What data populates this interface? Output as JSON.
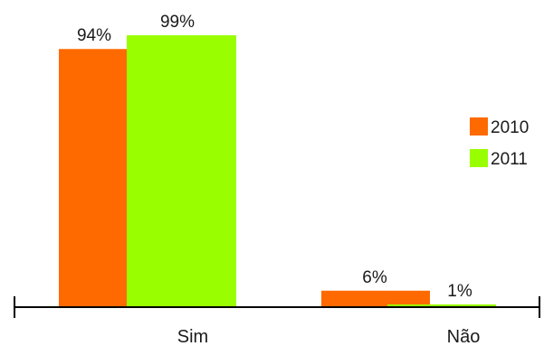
{
  "chart_data": {
    "type": "bar",
    "categories": [
      "Sim",
      "Não"
    ],
    "series": [
      {
        "name": "2010",
        "values": [
          94,
          6
        ],
        "labels": [
          "94%",
          "6%"
        ],
        "color": "#ff6a00"
      },
      {
        "name": "2011",
        "values": [
          99,
          1
        ],
        "labels": [
          "99%",
          "1%"
        ],
        "color": "#99ff00"
      }
    ],
    "unit": "%",
    "ylim": [
      0,
      100
    ],
    "legend_position": "right",
    "grid": false,
    "title": "",
    "xlabel": "",
    "ylabel": ""
  }
}
